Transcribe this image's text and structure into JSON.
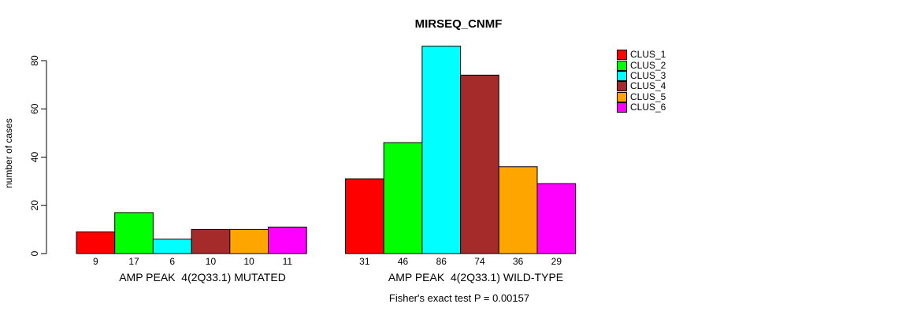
{
  "chart_data": {
    "type": "bar",
    "title": "MIRSEQ_CNMF",
    "ylabel": "number of cases",
    "xlabel": "",
    "annotation": "Fisher's exact test P = 0.00157",
    "ylim": [
      0,
      80
    ],
    "yticks": [
      0,
      20,
      40,
      60,
      80
    ],
    "grid": false,
    "legend_position": "right",
    "bar_value_labels": true,
    "categories": [
      "AMP PEAK  4(2Q33.1) MUTATED",
      "AMP PEAK  4(2Q33.1) WILD-TYPE"
    ],
    "series": [
      {
        "name": "CLUS_1",
        "color": "#FF0000",
        "values": [
          9,
          31
        ]
      },
      {
        "name": "CLUS_2",
        "color": "#00FF00",
        "values": [
          17,
          46
        ]
      },
      {
        "name": "CLUS_3",
        "color": "#00FFFF",
        "values": [
          6,
          86
        ]
      },
      {
        "name": "CLUS_4",
        "color": "#A52A2A",
        "values": [
          10,
          74
        ]
      },
      {
        "name": "CLUS_5",
        "color": "#FFA500",
        "values": [
          10,
          36
        ]
      },
      {
        "name": "CLUS_6",
        "color": "#FF00FF",
        "values": [
          11,
          29
        ]
      }
    ],
    "colors": {
      "axis": "#000000",
      "text": "#000000",
      "background": "#FFFFFF"
    }
  }
}
